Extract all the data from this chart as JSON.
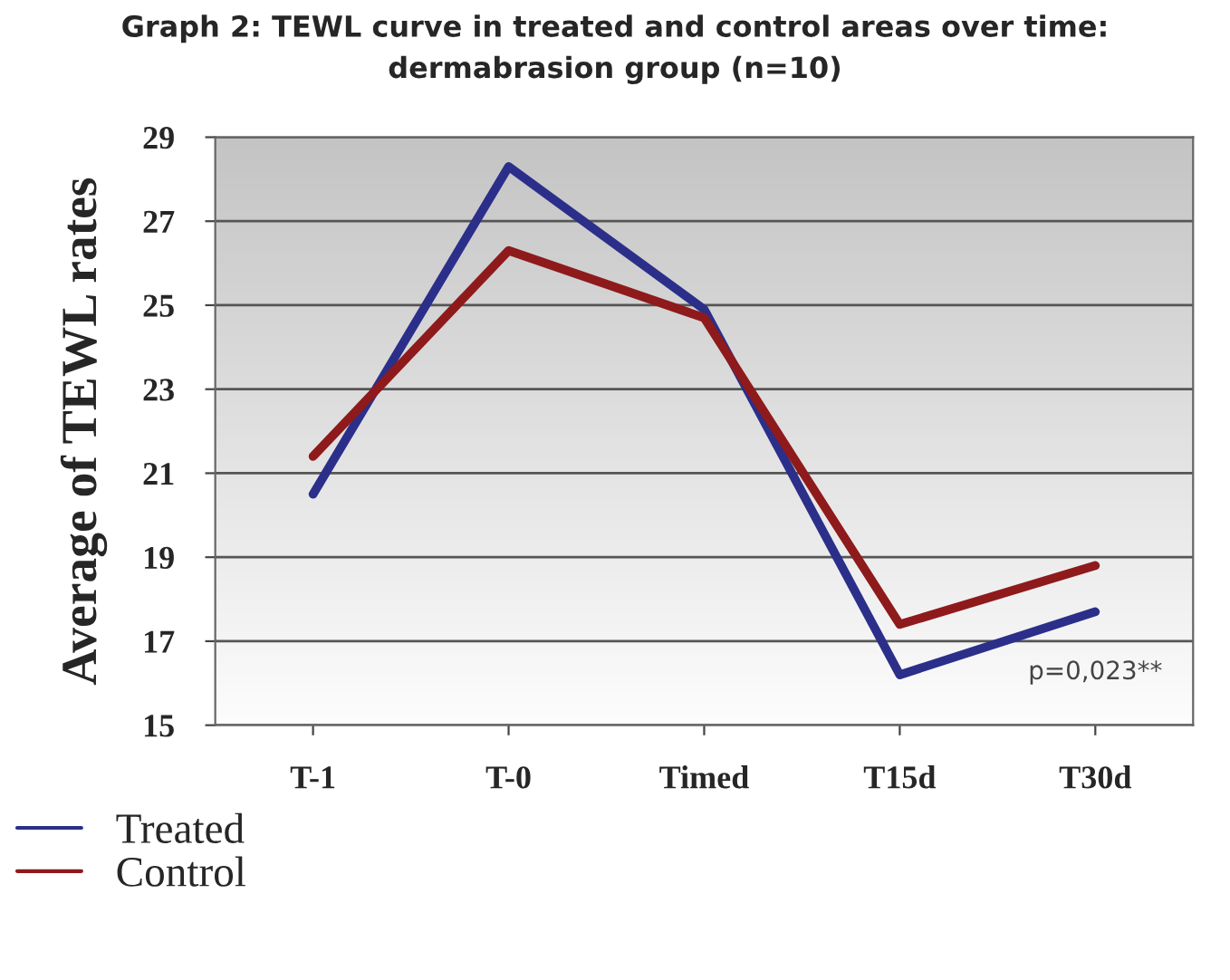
{
  "chart_data": {
    "type": "line",
    "title": "Graph 2: TEWL curve in treated and control areas over time:\ndermabrasion group (n=10)",
    "ylabel": "Average of TEWL rates",
    "categories": [
      "T-1",
      "T-0",
      "Timed",
      "T15d",
      "T30d"
    ],
    "series": [
      {
        "name": "Treated",
        "color": "#2b2f8a",
        "values": [
          20.5,
          28.3,
          24.9,
          16.2,
          17.7
        ]
      },
      {
        "name": "Control",
        "color": "#8e1a1c",
        "values": [
          21.4,
          26.3,
          24.7,
          17.4,
          18.8
        ]
      }
    ],
    "ylim": [
      15,
      29
    ],
    "yticks": [
      15,
      17,
      19,
      21,
      23,
      25,
      27,
      29
    ],
    "grid": "y",
    "legend": "bottom left",
    "marker": "none",
    "line_style": "solid",
    "annotations": [
      "p=0,023**"
    ]
  }
}
